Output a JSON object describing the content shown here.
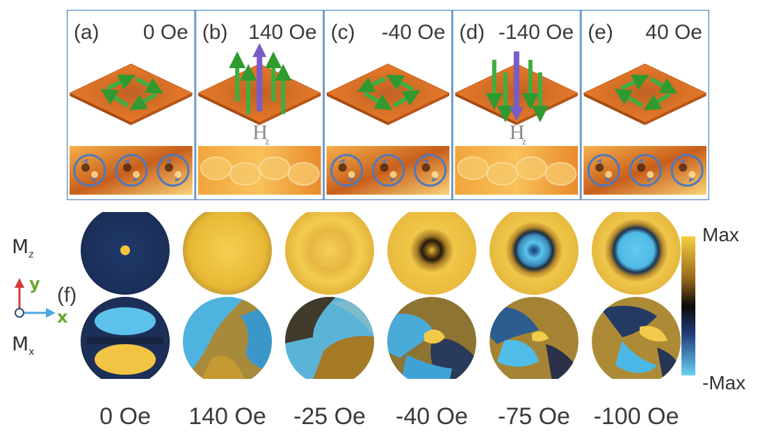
{
  "top_panels": [
    {
      "letter": "(a)",
      "field": "0 Oe",
      "state": "vortex-ccw"
    },
    {
      "letter": "(b)",
      "field": "140 Oe",
      "state": "saturated-up",
      "h_label": "H",
      "h_sub": "z"
    },
    {
      "letter": "(c)",
      "field": "-40 Oe",
      "state": "vortex-cw"
    },
    {
      "letter": "(d)",
      "field": "-140 Oe",
      "state": "saturated-down",
      "h_label": "H",
      "h_sub": "z"
    },
    {
      "letter": "(e)",
      "field": "40 Oe",
      "state": "vortex-ccw"
    }
  ],
  "panel_f": {
    "letter": "(f)",
    "row_mz": {
      "label": "M",
      "sub": "z"
    },
    "row_mx": {
      "label": "M",
      "sub": "x"
    },
    "axes": {
      "y": "y",
      "x": "x"
    },
    "fields": [
      "0 Oe",
      "140 Oe",
      "-25 Oe",
      "-40 Oe",
      "-75 Oe",
      "-100 Oe"
    ]
  },
  "colorbar": {
    "max": "Max",
    "min": "-Max"
  },
  "colors": {
    "frame": "#6d9bc9",
    "orange": "#ec7a2a",
    "green": "#3fae3f",
    "purple": "#7a5cc8",
    "gold": "#f2c43a",
    "cyan": "#55c7f0",
    "navy": "#1c3566"
  }
}
